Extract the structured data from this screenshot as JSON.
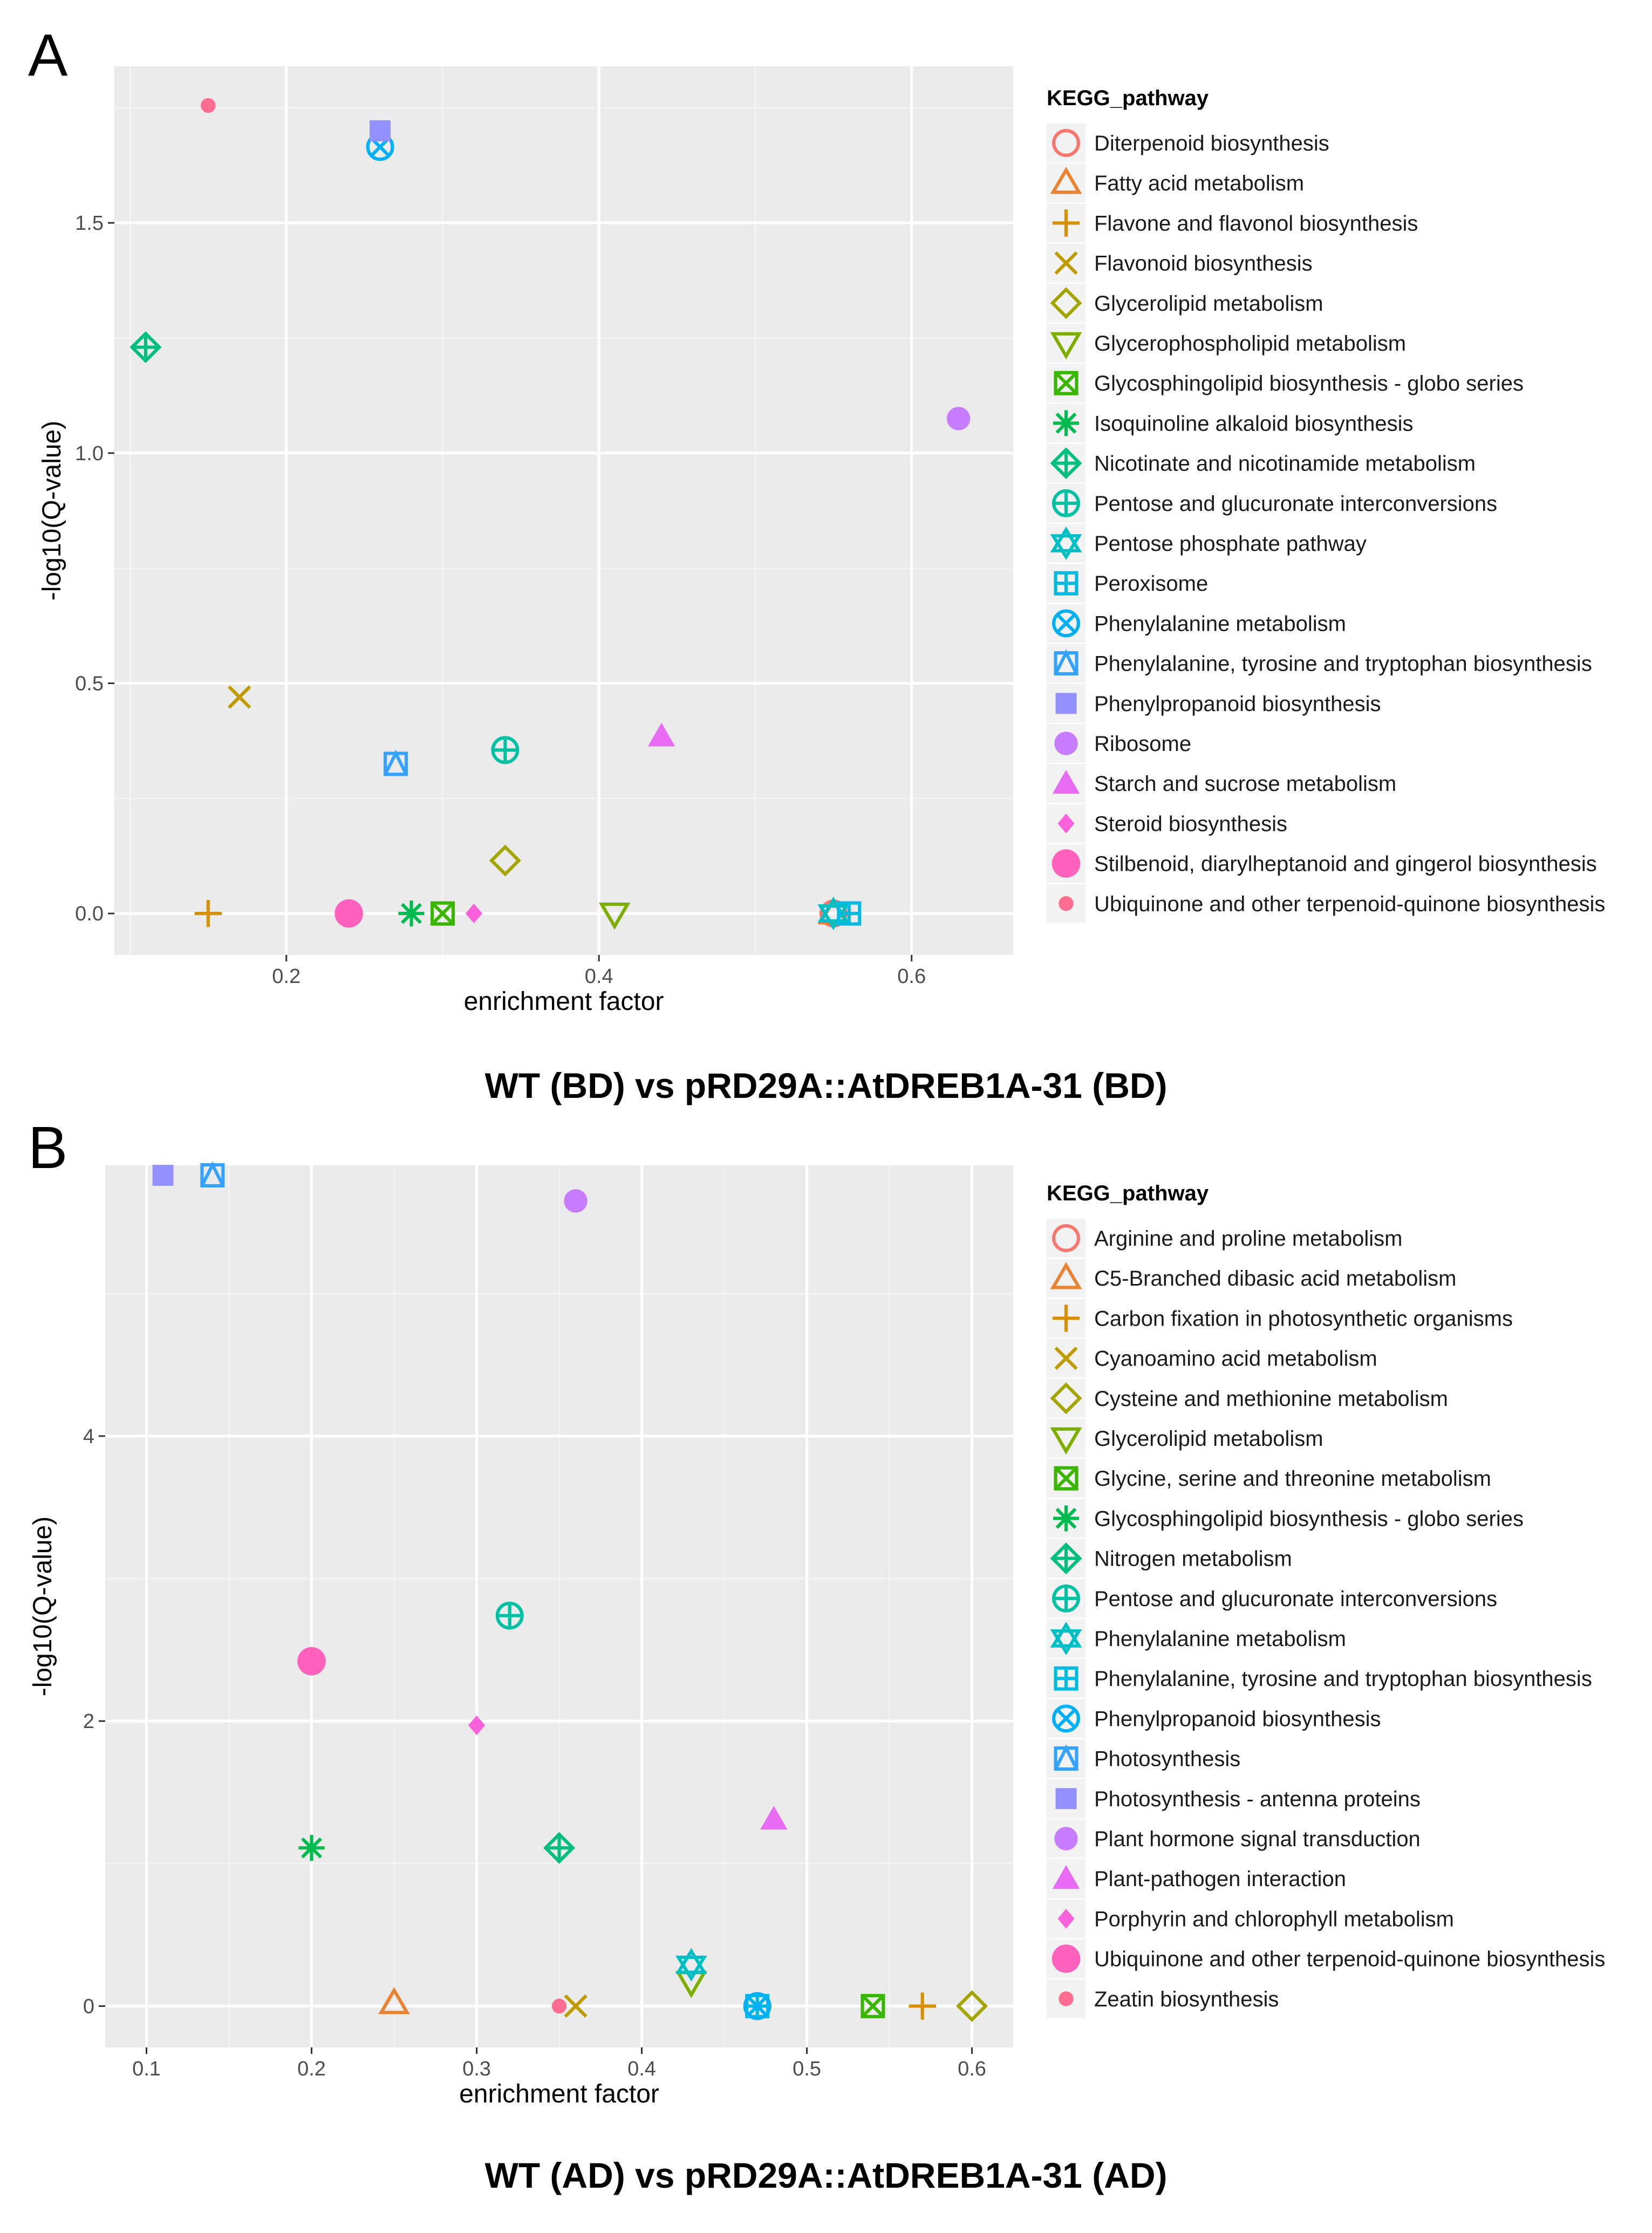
{
  "colors": {
    "panel_bg": "#ebebeb",
    "grid_major": "#ffffff",
    "tick_text": "#4d4d4d",
    "legend_key_bg": "#f2f2f2"
  },
  "chart_data": [
    {
      "type": "scatter",
      "panel_label": "A",
      "title": "WT (BD) vs pRD29A::AtDREB1A-31 (BD)",
      "xlabel": "enrichment factor",
      "ylabel": "-log10(Q-value)",
      "xlim": [
        0.09,
        0.665
      ],
      "ylim": [
        -0.09,
        1.84
      ],
      "xticks": [
        0.2,
        0.4,
        0.6
      ],
      "xtick_labels": [
        "0.2",
        "0.4",
        "0.6"
      ],
      "yticks": [
        0.0,
        0.5,
        1.0,
        1.5
      ],
      "ytick_labels": [
        "0.0",
        "0.5",
        "1.0",
        "1.5"
      ],
      "xminor": [
        0.1,
        0.3,
        0.5
      ],
      "yminor": [
        0.25,
        0.75,
        1.25,
        1.75
      ],
      "legend_title": "KEGG_pathway",
      "legend_position": "right",
      "series": [
        {
          "name": "Diterpenoid biosynthesis",
          "color": "#F8766D",
          "shape": "circle-open",
          "points": [
            [
              0.55,
              0.0
            ]
          ]
        },
        {
          "name": "Fatty acid metabolism",
          "color": "#EA8331",
          "shape": "triangle-open",
          "points": [
            [
              0.55,
              0.0
            ]
          ]
        },
        {
          "name": "Flavone and flavonol biosynthesis",
          "color": "#D89000",
          "shape": "plus",
          "points": [
            [
              0.15,
              0.0
            ]
          ]
        },
        {
          "name": "Flavonoid biosynthesis",
          "color": "#C09B00",
          "shape": "cross",
          "points": [
            [
              0.17,
              0.47
            ]
          ]
        },
        {
          "name": "Glycerolipid metabolism",
          "color": "#A3A500",
          "shape": "diamond-open",
          "points": [
            [
              0.34,
              0.115
            ]
          ]
        },
        {
          "name": "Glycerophospholipid metabolism",
          "color": "#7CAE00",
          "shape": "triangle-down-open",
          "points": [
            [
              0.41,
              0.0
            ]
          ]
        },
        {
          "name": "Glycosphingolipid biosynthesis - globo series",
          "color": "#39B600",
          "shape": "square-cross",
          "points": [
            [
              0.3,
              0.0
            ]
          ]
        },
        {
          "name": "Isoquinoline alkaloid biosynthesis",
          "color": "#00BB4E",
          "shape": "asterisk",
          "points": [
            [
              0.28,
              0.0
            ]
          ]
        },
        {
          "name": "Nicotinate and nicotinamide metabolism",
          "color": "#00BF7D",
          "shape": "diamond-plus",
          "points": [
            [
              0.11,
              1.23
            ]
          ]
        },
        {
          "name": "Pentose and glucuronate interconversions",
          "color": "#00C1A3",
          "shape": "circle-plus",
          "points": [
            [
              0.34,
              0.355
            ]
          ]
        },
        {
          "name": "Pentose phosphate pathway",
          "color": "#00BFC4",
          "shape": "star-david",
          "points": [
            [
              0.55,
              0.0
            ]
          ]
        },
        {
          "name": "Peroxisome",
          "color": "#00BAE0",
          "shape": "square-plus",
          "points": [
            [
              0.56,
              0.0
            ]
          ]
        },
        {
          "name": "Phenylalanine metabolism",
          "color": "#00B0F6",
          "shape": "circle-cross",
          "points": [
            [
              0.26,
              1.665
            ]
          ]
        },
        {
          "name": "Phenylalanine, tyrosine and tryptophan biosynthesis",
          "color": "#35A2FF",
          "shape": "square-triangle",
          "points": [
            [
              0.27,
              0.325
            ]
          ]
        },
        {
          "name": "Phenylpropanoid biosynthesis",
          "color": "#9590FF",
          "shape": "square",
          "points": [
            [
              0.26,
              1.7
            ]
          ]
        },
        {
          "name": "Ribosome",
          "color": "#C77CFF",
          "shape": "circle",
          "points": [
            [
              0.63,
              1.075
            ]
          ]
        },
        {
          "name": "Starch and sucrose metabolism",
          "color": "#E76BF3",
          "shape": "triangle",
          "points": [
            [
              0.44,
              0.385
            ]
          ]
        },
        {
          "name": "Steroid biosynthesis",
          "color": "#FA62DB",
          "shape": "diamond",
          "points": [
            [
              0.32,
              0.0
            ]
          ]
        },
        {
          "name": "Stilbenoid, diarylheptanoid and gingerol biosynthesis",
          "color": "#FF62BC",
          "shape": "circle-big",
          "points": [
            [
              0.24,
              0.0
            ]
          ]
        },
        {
          "name": "Ubiquinone and other terpenoid-quinone biosynthesis",
          "color": "#FF6C91",
          "shape": "circle-small",
          "points": [
            [
              0.15,
              1.755
            ]
          ]
        }
      ]
    },
    {
      "type": "scatter",
      "panel_label": "B",
      "title": "WT (AD) vs pRD29A::AtDREB1A-31 (AD)",
      "xlabel": "enrichment factor",
      "ylabel": "-log10(Q-value)",
      "xlim": [
        0.075,
        0.625
      ],
      "ylim": [
        -0.29,
        5.9
      ],
      "xticks": [
        0.1,
        0.2,
        0.3,
        0.4,
        0.5,
        0.6
      ],
      "xtick_labels": [
        "0.1",
        "0.2",
        "0.3",
        "0.4",
        "0.5",
        "0.6"
      ],
      "yticks": [
        0,
        2,
        4
      ],
      "ytick_labels": [
        "0",
        "2",
        "4"
      ],
      "xminor": [
        0.15,
        0.25,
        0.35,
        0.45,
        0.55
      ],
      "yminor": [
        1,
        3,
        5
      ],
      "legend_title": "KEGG_pathway",
      "legend_position": "right",
      "series": [
        {
          "name": "Arginine and proline metabolism",
          "color": "#F8766D",
          "shape": "circle-open",
          "points": [
            [
              0.47,
              0.0
            ]
          ]
        },
        {
          "name": "C5-Branched dibasic acid metabolism",
          "color": "#EA8331",
          "shape": "triangle-open",
          "points": [
            [
              0.25,
              0.02
            ]
          ]
        },
        {
          "name": "Carbon fixation in photosynthetic organisms",
          "color": "#D89000",
          "shape": "plus",
          "points": [
            [
              0.57,
              0.0
            ]
          ]
        },
        {
          "name": "Cyanoamino acid metabolism",
          "color": "#C09B00",
          "shape": "cross",
          "points": [
            [
              0.36,
              0.0
            ]
          ]
        },
        {
          "name": "Cysteine and methionine metabolism",
          "color": "#A3A500",
          "shape": "diamond-open",
          "points": [
            [
              0.6,
              0.0
            ]
          ]
        },
        {
          "name": "Glycerolipid metabolism",
          "color": "#7CAE00",
          "shape": "triangle-down-open",
          "points": [
            [
              0.43,
              0.17
            ]
          ]
        },
        {
          "name": "Glycine, serine and threonine metabolism",
          "color": "#39B600",
          "shape": "square-cross",
          "points": [
            [
              0.54,
              0.0
            ]
          ]
        },
        {
          "name": "Glycosphingolipid biosynthesis - globo series",
          "color": "#00BB4E",
          "shape": "asterisk",
          "points": [
            [
              0.2,
              1.11
            ]
          ]
        },
        {
          "name": "Nitrogen metabolism",
          "color": "#00BF7D",
          "shape": "diamond-plus",
          "points": [
            [
              0.35,
              1.11
            ]
          ]
        },
        {
          "name": "Pentose and glucuronate interconversions",
          "color": "#00C1A3",
          "shape": "circle-plus",
          "points": [
            [
              0.32,
              2.74
            ]
          ]
        },
        {
          "name": "Phenylalanine metabolism",
          "color": "#00BFC4",
          "shape": "star-david",
          "points": [
            [
              0.43,
              0.29
            ]
          ]
        },
        {
          "name": "Phenylalanine, tyrosine and tryptophan biosynthesis",
          "color": "#00BAE0",
          "shape": "square-plus",
          "points": [
            [
              0.47,
              0.0
            ]
          ]
        },
        {
          "name": "Phenylpropanoid biosynthesis",
          "color": "#00B0F6",
          "shape": "circle-cross",
          "points": [
            [
              0.47,
              0.0
            ]
          ]
        },
        {
          "name": "Photosynthesis",
          "color": "#35A2FF",
          "shape": "square-triangle",
          "points": [
            [
              0.14,
              5.83
            ]
          ]
        },
        {
          "name": "Photosynthesis - antenna proteins",
          "color": "#9590FF",
          "shape": "square",
          "points": [
            [
              0.11,
              5.83
            ]
          ]
        },
        {
          "name": "Plant hormone signal transduction",
          "color": "#C77CFF",
          "shape": "circle",
          "points": [
            [
              0.36,
              5.65
            ]
          ]
        },
        {
          "name": "Plant-pathogen interaction",
          "color": "#E76BF3",
          "shape": "triangle",
          "points": [
            [
              0.48,
              1.31
            ]
          ]
        },
        {
          "name": "Porphyrin and chlorophyll metabolism",
          "color": "#FA62DB",
          "shape": "diamond",
          "points": [
            [
              0.3,
              1.97
            ]
          ]
        },
        {
          "name": "Ubiquinone and other terpenoid-quinone biosynthesis",
          "color": "#FF62BC",
          "shape": "circle-big",
          "points": [
            [
              0.2,
              2.42
            ]
          ]
        },
        {
          "name": "Zeatin biosynthesis",
          "color": "#FF6C91",
          "shape": "circle-small",
          "points": [
            [
              0.35,
              0.0
            ]
          ]
        }
      ]
    }
  ]
}
